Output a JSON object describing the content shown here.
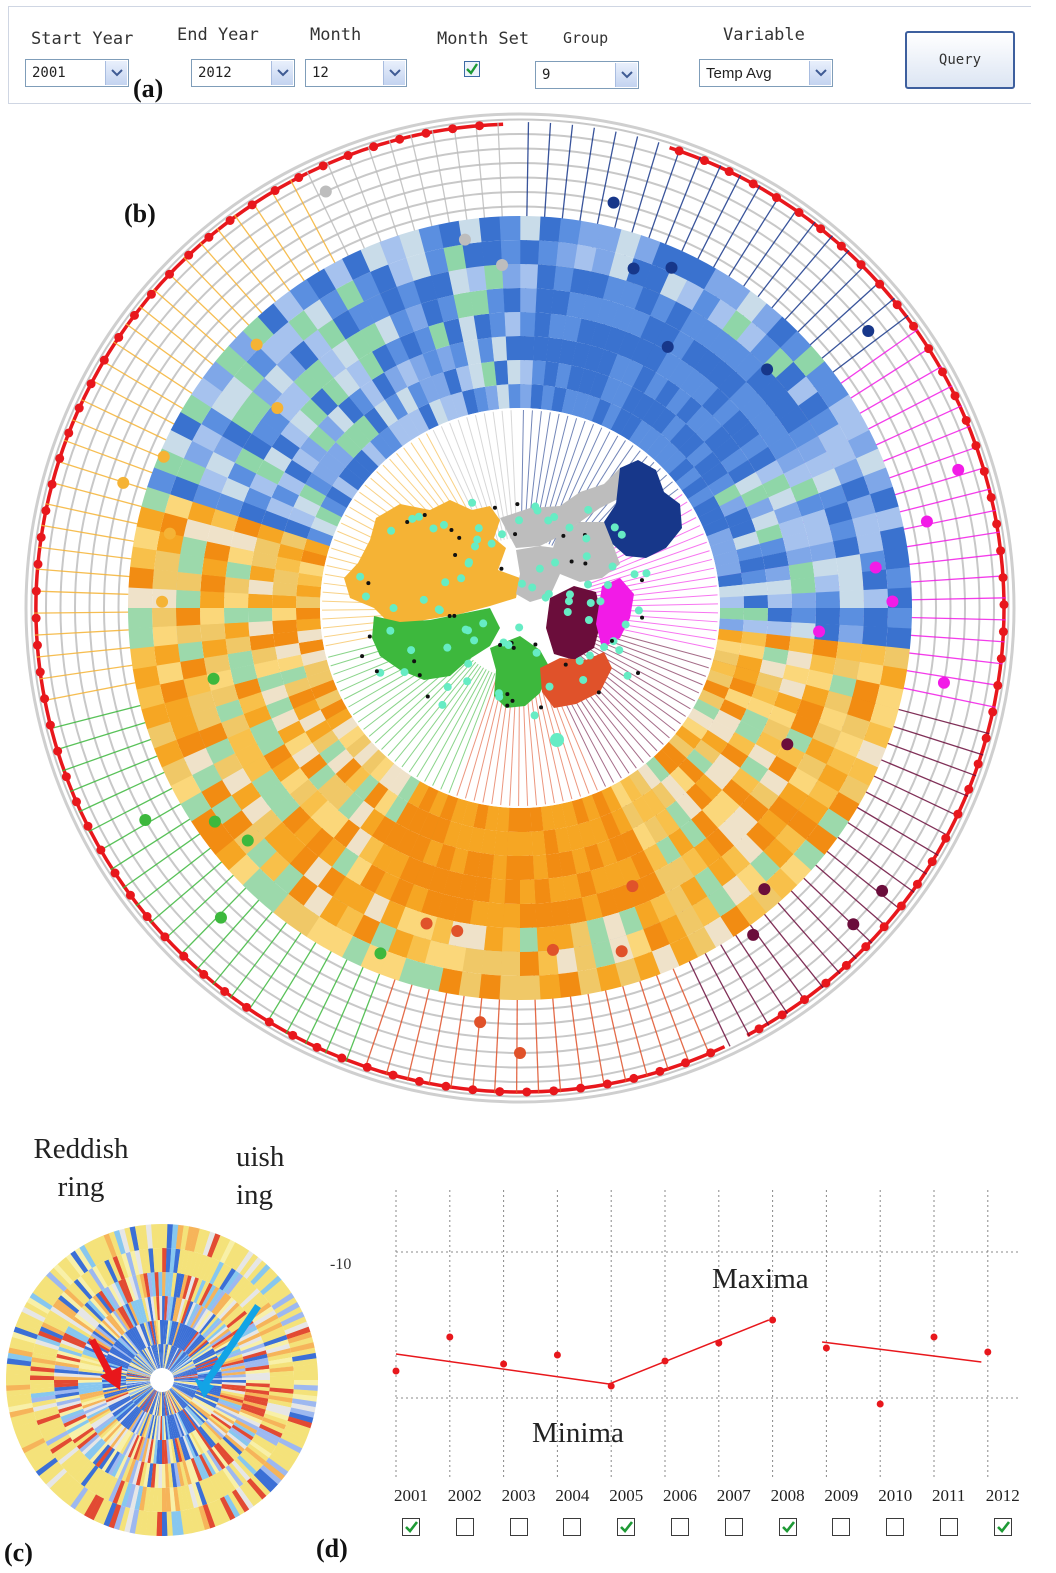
{
  "query_bar": {
    "start_year": {
      "label": "Start Year",
      "value": "2001"
    },
    "end_year": {
      "label": "End Year",
      "value": "2012"
    },
    "month": {
      "label": "Month",
      "value": "12"
    },
    "month_set": {
      "label": "Month Set",
      "checked": true
    },
    "group": {
      "label": "Group",
      "value": "9"
    },
    "variable": {
      "label": "Variable",
      "value": "Temp Avg"
    },
    "query_label": "Query"
  },
  "panels": {
    "a": "(a)",
    "b": "(b)",
    "c": "(c)",
    "d": "(d)"
  },
  "colors": {
    "red_ring": "#e8171c",
    "orange_group": "#f5b335",
    "grey_group": "#bdbdbd",
    "navy_group": "#17378a",
    "magenta_group": "#f21be7",
    "maroon_group": "#6b0d3b",
    "red_orange_group": "#e0522a",
    "green_group": "#3db83d",
    "station_dot": "#66ecc4"
  },
  "annotations": {
    "reddish_ring": "Reddish ring",
    "bluish_ring": "uish ing"
  },
  "timeline": {
    "ytick": "-10",
    "maxima_label": "Maxima",
    "minima_label": "Minima",
    "years": [
      {
        "label": "2001",
        "checked": true
      },
      {
        "label": "2002",
        "checked": false
      },
      {
        "label": "2003",
        "checked": false
      },
      {
        "label": "2004",
        "checked": false
      },
      {
        "label": "2005",
        "checked": true
      },
      {
        "label": "2006",
        "checked": false
      },
      {
        "label": "2007",
        "checked": false
      },
      {
        "label": "2008",
        "checked": true
      },
      {
        "label": "2009",
        "checked": false
      },
      {
        "label": "2010",
        "checked": false
      },
      {
        "label": "2011",
        "checked": false
      },
      {
        "label": "2012",
        "checked": true
      }
    ]
  }
}
